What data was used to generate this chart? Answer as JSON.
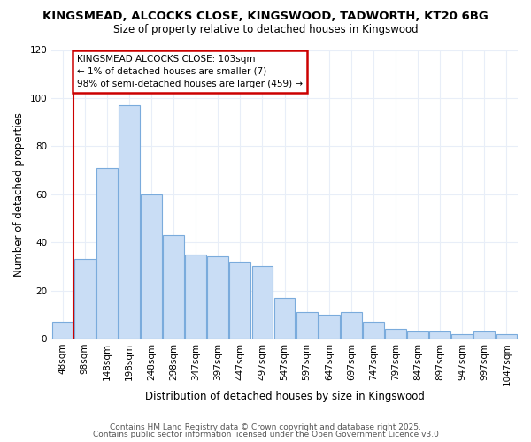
{
  "title_line1": "KINGSMEAD, ALCOCKS CLOSE, KINGSWOOD, TADWORTH, KT20 6BG",
  "title_line2": "Size of property relative to detached houses in Kingswood",
  "xlabel": "Distribution of detached houses by size in Kingswood",
  "ylabel": "Number of detached properties",
  "bar_labels": [
    "48sqm",
    "98sqm",
    "148sqm",
    "198sqm",
    "248sqm",
    "298sqm",
    "347sqm",
    "397sqm",
    "447sqm",
    "497sqm",
    "547sqm",
    "597sqm",
    "647sqm",
    "697sqm",
    "747sqm",
    "797sqm",
    "847sqm",
    "897sqm",
    "947sqm",
    "997sqm",
    "1047sqm"
  ],
  "bar_values": [
    7,
    33,
    71,
    97,
    60,
    43,
    35,
    34,
    32,
    30,
    17,
    11,
    10,
    11,
    7,
    4,
    3,
    3,
    2,
    3,
    2
  ],
  "bar_color": "#c9ddf5",
  "bar_edge_color": "#7aabdc",
  "ylim": [
    0,
    120
  ],
  "yticks": [
    0,
    20,
    40,
    60,
    80,
    100,
    120
  ],
  "annotation_title": "KINGSMEAD ALCOCKS CLOSE: 103sqm",
  "annotation_line1": "← 1% of detached houses are smaller (7)",
  "annotation_line2": "98% of semi-detached houses are larger (459) →",
  "annotation_box_color": "#ffffff",
  "annotation_box_edge": "#cc0000",
  "vline_color": "#cc0000",
  "background_color": "#ffffff",
  "grid_color": "#e8eef8",
  "footer_line1": "Contains HM Land Registry data © Crown copyright and database right 2025.",
  "footer_line2": "Contains public sector information licensed under the Open Government Licence v3.0"
}
